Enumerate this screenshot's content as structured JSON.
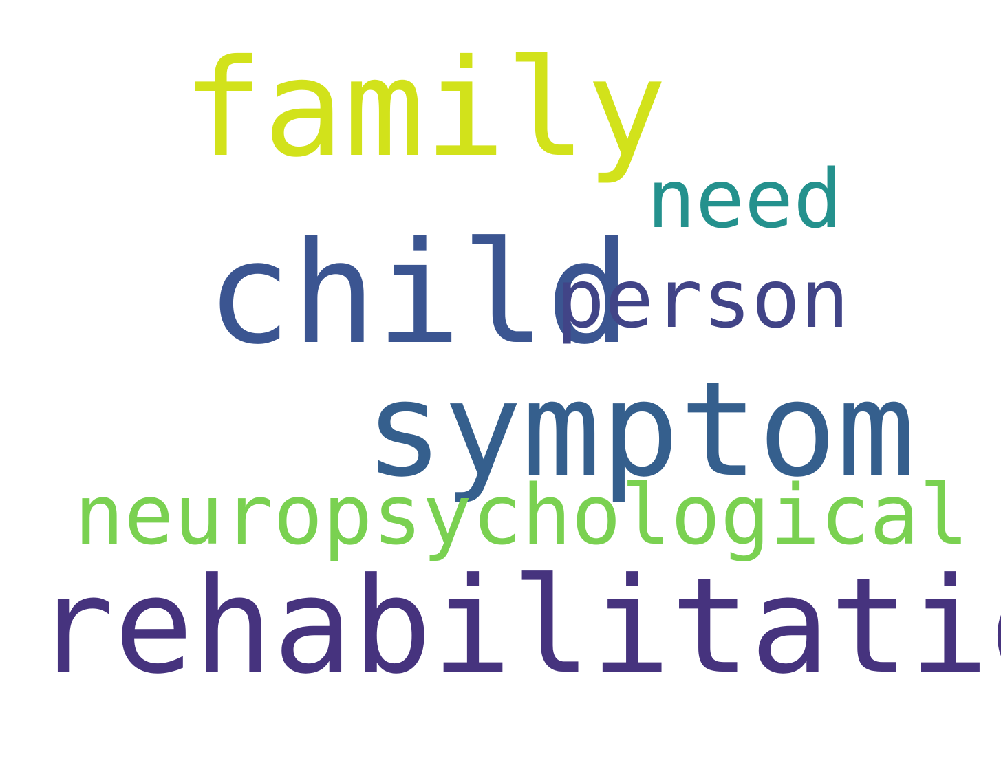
{
  "words": [
    {
      "text": "family",
      "color": "#d2e21b"
    },
    {
      "text": "need",
      "color": "#24918d"
    },
    {
      "text": "child",
      "color": "#3b5591"
    },
    {
      "text": "person",
      "color": "#414487"
    },
    {
      "text": "symptom",
      "color": "#355f8d"
    },
    {
      "text": "neuropsychological",
      "color": "#7ad151"
    },
    {
      "text": "rehabilitation",
      "color": "#46337e"
    }
  ]
}
